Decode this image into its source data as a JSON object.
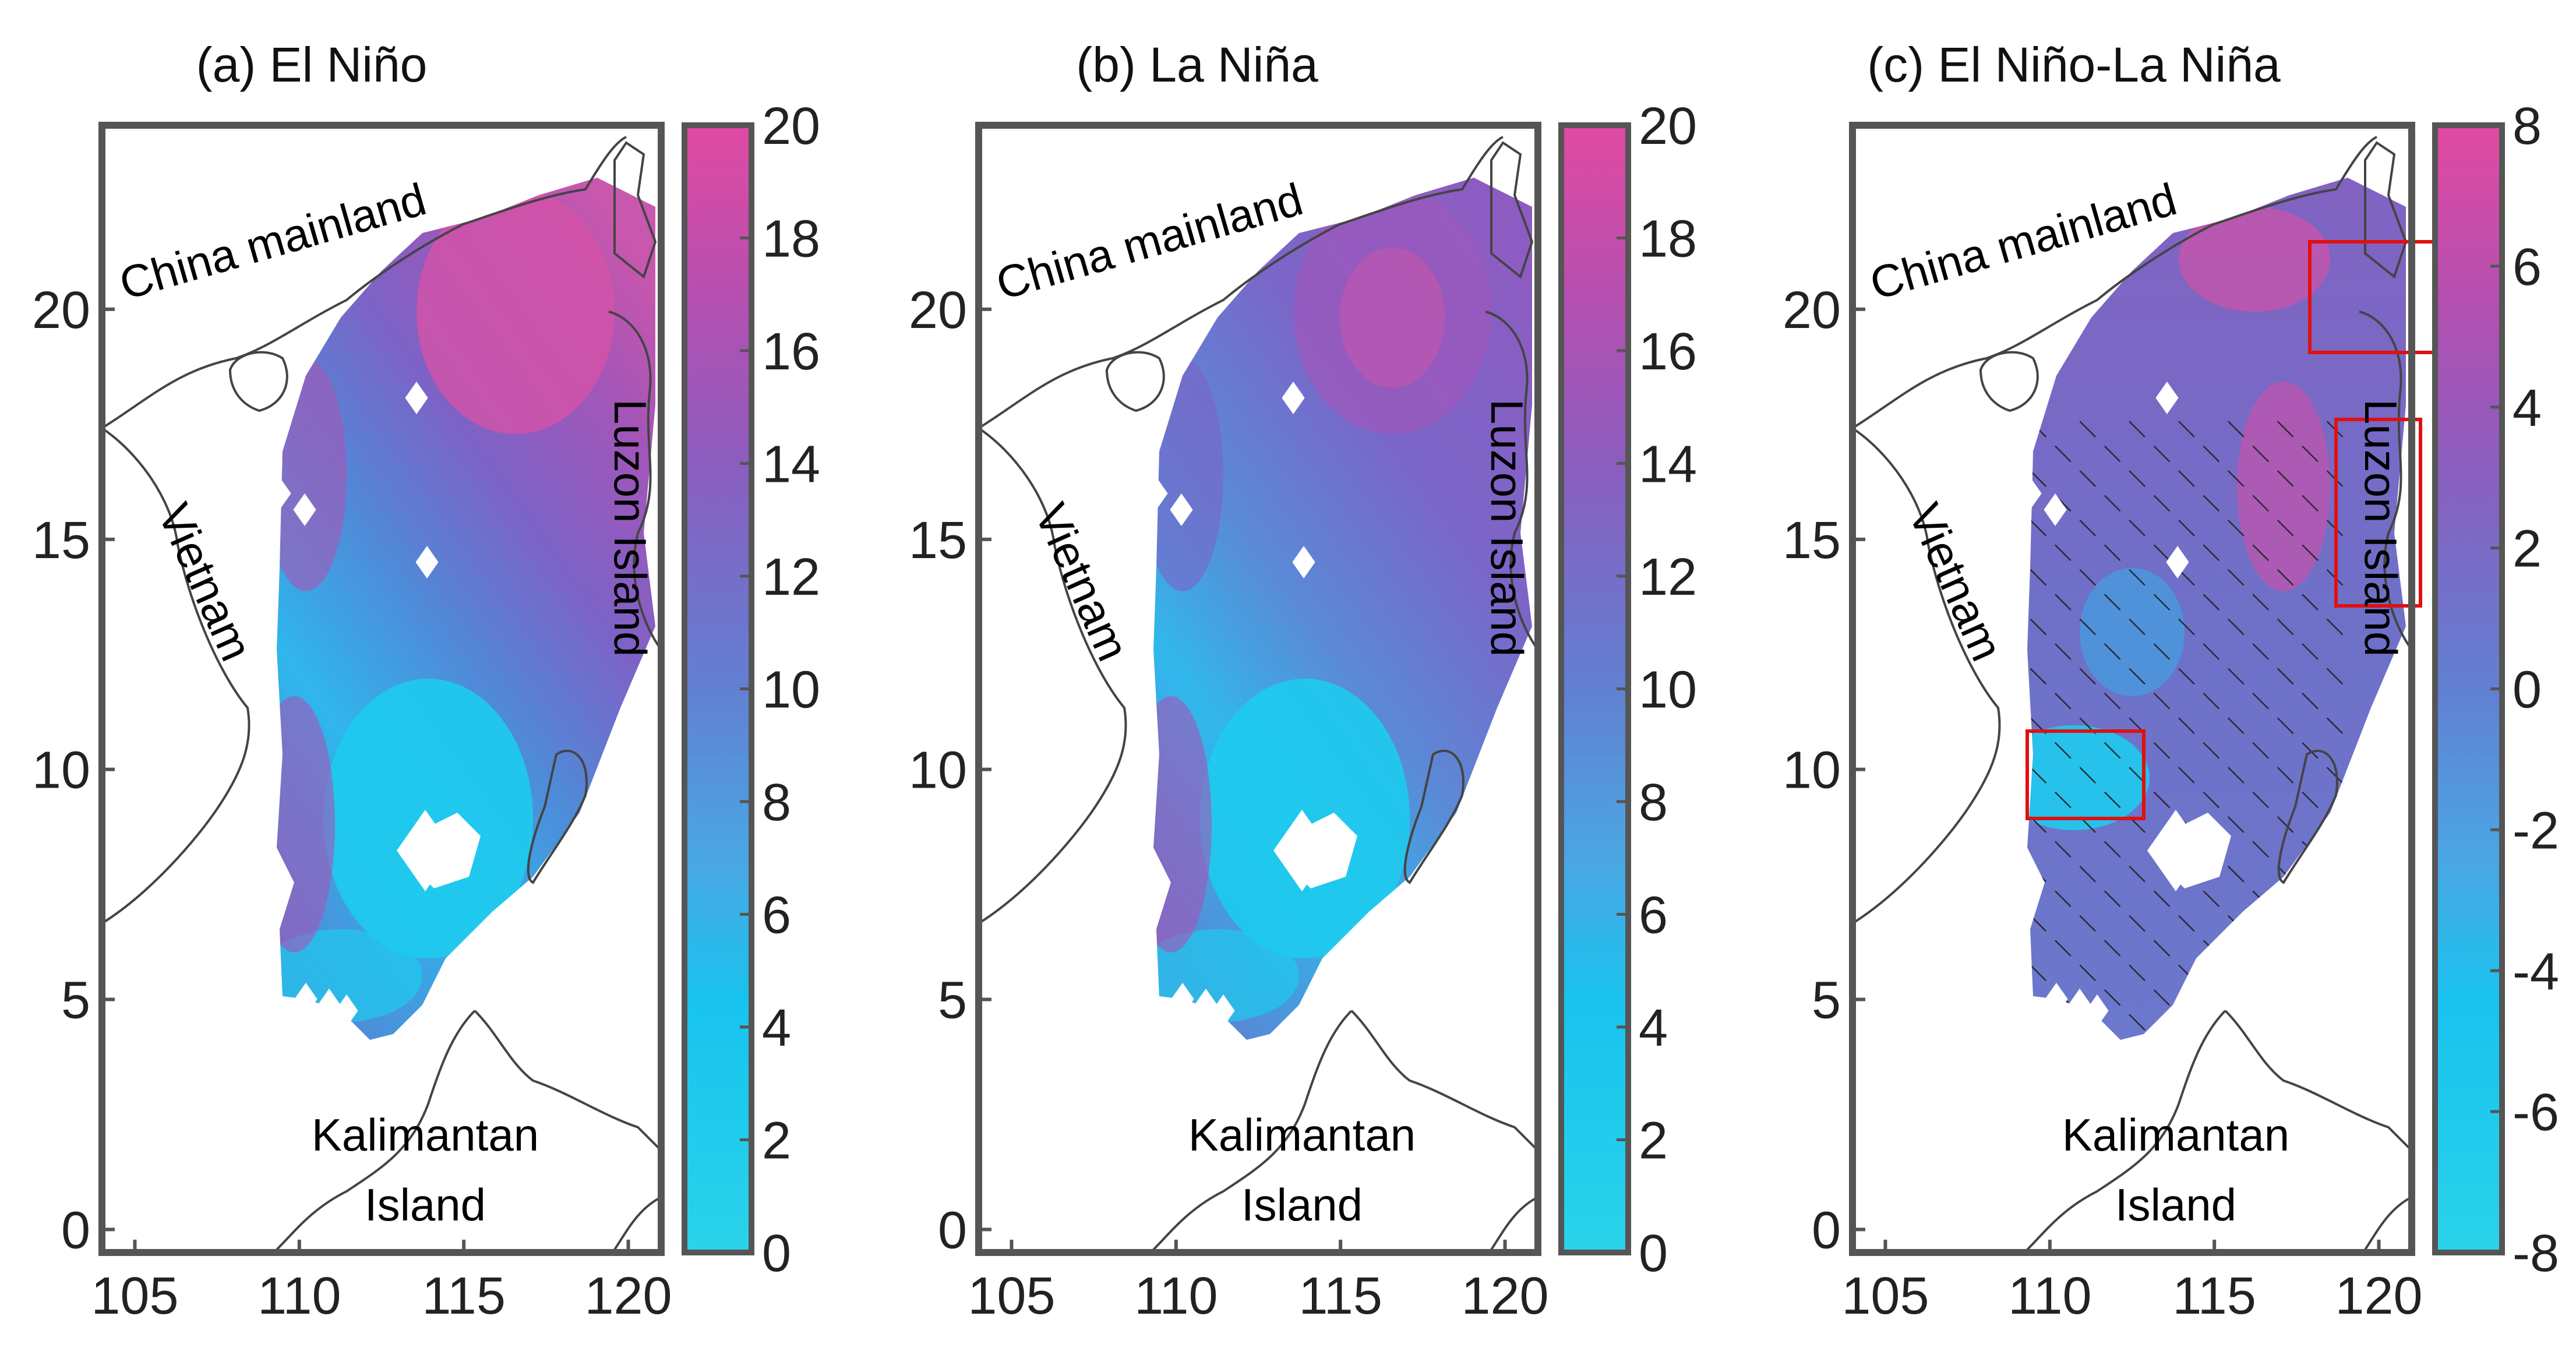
{
  "figure": {
    "panels": [
      {
        "id": "a",
        "title": "(a) El Niño",
        "colorbar": {
          "ticks": [
            "20",
            "18",
            "16",
            "14",
            "12",
            "10",
            "8",
            "6",
            "4",
            "2",
            "0"
          ],
          "range": [
            0,
            20
          ]
        }
      },
      {
        "id": "b",
        "title": "(b) La Niña",
        "colorbar": {
          "ticks": [
            "20",
            "18",
            "16",
            "14",
            "12",
            "10",
            "8",
            "6",
            "4",
            "2",
            "0"
          ],
          "range": [
            0,
            20
          ]
        }
      },
      {
        "id": "c",
        "title": "(c) El Niño-La Niña",
        "colorbar": {
          "ticks": [
            "8",
            "6",
            "4",
            "2",
            "0",
            "-2",
            "-4",
            "-6",
            "-8"
          ],
          "range": [
            -8,
            8
          ]
        },
        "annotations": [
          "hatching",
          "red boxes"
        ]
      }
    ],
    "x_ticks": [
      "105",
      "110",
      "115",
      "120"
    ],
    "y_ticks": [
      "20",
      "15",
      "10",
      "5",
      "0"
    ],
    "x_range": [
      104,
      121
    ],
    "y_range": [
      -0.5,
      24
    ],
    "place_labels": {
      "china": "China mainland",
      "vietnam": "Vietnam",
      "luzon": "Luzon Island",
      "kalimantan_1": "Kalimantan",
      "kalimantan_2": "Island"
    },
    "colors": {
      "low": "#1ecfea",
      "mid": "#5a86d6",
      "high": "#d84ea6",
      "hatch": "#222222",
      "box": "#e01010"
    }
  }
}
